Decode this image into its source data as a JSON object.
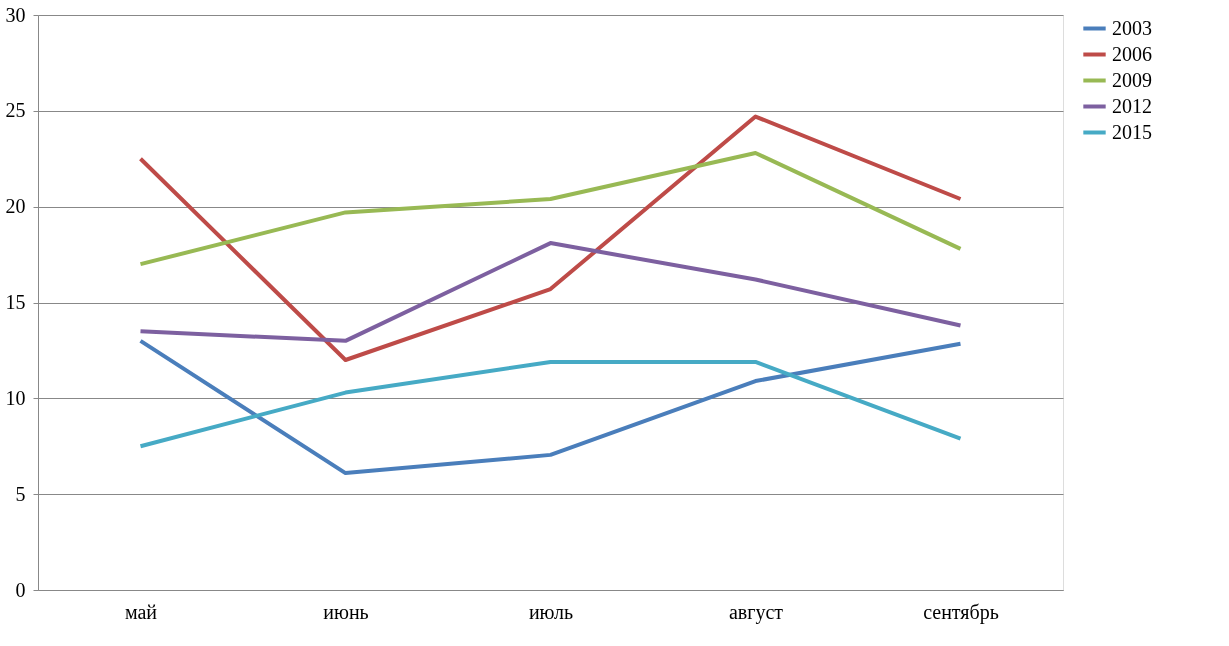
{
  "chart_data": {
    "type": "line",
    "categories": [
      "май",
      "июнь",
      "июль",
      "август",
      "сентябрь"
    ],
    "series": [
      {
        "name": "2003",
        "color": "#4a7ebb",
        "values": [
          13.0,
          6.1,
          7.05,
          10.9,
          12.85
        ]
      },
      {
        "name": "2006",
        "color": "#be4b48",
        "values": [
          22.5,
          12.0,
          15.7,
          24.7,
          20.4
        ]
      },
      {
        "name": "2009",
        "color": "#98b954",
        "values": [
          17.0,
          19.7,
          20.4,
          22.8,
          17.8
        ]
      },
      {
        "name": "2012",
        "color": "#7d60a0",
        "values": [
          13.5,
          13.0,
          18.1,
          16.2,
          13.8
        ]
      },
      {
        "name": "2015",
        "color": "#46aac5",
        "values": [
          7.5,
          10.3,
          11.9,
          11.9,
          7.9
        ]
      }
    ],
    "ylim": [
      0,
      30
    ],
    "yticks": [
      0,
      5,
      10,
      15,
      20,
      25,
      30
    ],
    "grid": "y",
    "legend": "right",
    "marker": "none",
    "line_style": "solid"
  }
}
